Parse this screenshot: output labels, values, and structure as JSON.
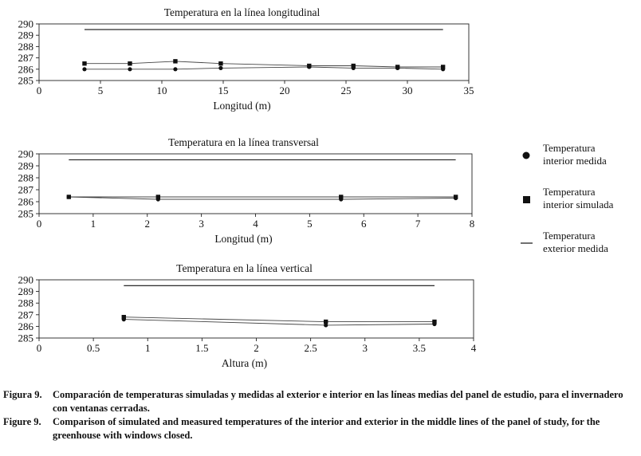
{
  "chart_data": [
    {
      "type": "line",
      "title": "Temperatura en la línea longitudinal",
      "xlabel": "Longitud (m)",
      "ylabel": "",
      "xlim": [
        0,
        35
      ],
      "ylim": [
        285,
        290
      ],
      "xticks": [
        0,
        5,
        10,
        15,
        20,
        25,
        30,
        35
      ],
      "xtick_labels": [
        "0",
        "5",
        "10",
        "15",
        "20",
        "25",
        "30",
        "35"
      ],
      "yticks": [
        285,
        286,
        287,
        288,
        289,
        290
      ],
      "ytick_labels": [
        "285",
        "286",
        "287",
        "288",
        "289",
        "290"
      ],
      "grid": false,
      "series": [
        {
          "name": "Temperatura interior medida",
          "marker": "circle",
          "x": [
            3.7,
            7.4,
            11.1,
            14.8,
            22,
            25.6,
            29.2,
            32.9
          ],
          "y": [
            286.0,
            286.0,
            286.0,
            286.1,
            286.2,
            286.1,
            286.1,
            286.0
          ]
        },
        {
          "name": "Temperatura interior simulada",
          "marker": "square",
          "x": [
            3.7,
            7.4,
            11.1,
            14.8,
            22,
            25.6,
            29.2,
            32.9
          ],
          "y": [
            286.5,
            286.5,
            286.7,
            286.5,
            286.3,
            286.3,
            286.2,
            286.2
          ]
        },
        {
          "name": "Temperatura exterior medida",
          "marker": "none",
          "x": [
            3.7,
            32.9
          ],
          "y": [
            289.5,
            289.5
          ]
        }
      ]
    },
    {
      "type": "line",
      "title": "Temperatura en la línea transversal",
      "xlabel": "Longitud (m)",
      "ylabel": "",
      "xlim": [
        0,
        8
      ],
      "ylim": [
        285,
        290
      ],
      "xticks": [
        0,
        1,
        2,
        3,
        4,
        5,
        6,
        7,
        8
      ],
      "xtick_labels": [
        "0",
        "1",
        "2",
        "3",
        "4",
        "5",
        "6",
        "7",
        "8"
      ],
      "yticks": [
        285,
        286,
        287,
        288,
        289,
        290
      ],
      "ytick_labels": [
        "285",
        "286",
        "287",
        "288",
        "289",
        "290"
      ],
      "grid": false,
      "series": [
        {
          "name": "Temperatura interior medida",
          "marker": "circle",
          "x": [
            0.55,
            2.2,
            5.58,
            7.7
          ],
          "y": [
            286.4,
            286.2,
            286.2,
            286.3
          ]
        },
        {
          "name": "Temperatura interior simulada",
          "marker": "square",
          "x": [
            0.55,
            2.2,
            5.58,
            7.7
          ],
          "y": [
            286.4,
            286.4,
            286.4,
            286.4
          ]
        },
        {
          "name": "Temperatura exterior medida",
          "marker": "none",
          "x": [
            0.55,
            7.7
          ],
          "y": [
            289.5,
            289.5
          ]
        }
      ]
    },
    {
      "type": "line",
      "title": "Temperatura en la línea vertical",
      "xlabel": "Altura (m)",
      "ylabel": "",
      "xlim": [
        0,
        4
      ],
      "ylim": [
        285,
        290
      ],
      "xticks": [
        0,
        0.5,
        1,
        1.5,
        2,
        2.5,
        3,
        3.5,
        4
      ],
      "xtick_labels": [
        "0",
        "0.5",
        "1",
        "1.5",
        "2",
        "2.5",
        "3",
        "3.5",
        "4"
      ],
      "yticks": [
        285,
        286,
        287,
        288,
        289,
        290
      ],
      "ytick_labels": [
        "285",
        "286",
        "287",
        "288",
        "289",
        "290"
      ],
      "grid": false,
      "series": [
        {
          "name": "Temperatura interior medida",
          "marker": "circle",
          "x": [
            0.78,
            2.64,
            3.64
          ],
          "y": [
            286.6,
            286.1,
            286.2
          ]
        },
        {
          "name": "Temperatura interior simulada",
          "marker": "square",
          "x": [
            0.78,
            2.64,
            3.64
          ],
          "y": [
            286.8,
            286.4,
            286.4
          ]
        },
        {
          "name": "Temperatura exterior medida",
          "marker": "none",
          "x": [
            0.78,
            3.64
          ],
          "y": [
            289.5,
            289.5
          ]
        }
      ]
    }
  ],
  "legend": {
    "placement": "right",
    "items": [
      {
        "symbol": "circle",
        "line1": "Temperatura",
        "line2": "interior medida"
      },
      {
        "symbol": "square",
        "line1": "Temperatura",
        "line2": "interior simulada"
      },
      {
        "symbol": "line",
        "line1": "Temperatura",
        "line2": "exterior medida"
      }
    ]
  },
  "caption": {
    "es_label": "Figura 9.",
    "es_text": "Comparación de temperaturas simuladas y medidas al exterior e interior en las líneas medias del panel de estudio, para el invernadero con ventanas cerradas.",
    "en_label": "Figure 9.",
    "en_text": "Comparison of simulated and measured temperatures of the interior and exterior in the middle lines of the panel of study, for the greenhouse with windows closed."
  }
}
